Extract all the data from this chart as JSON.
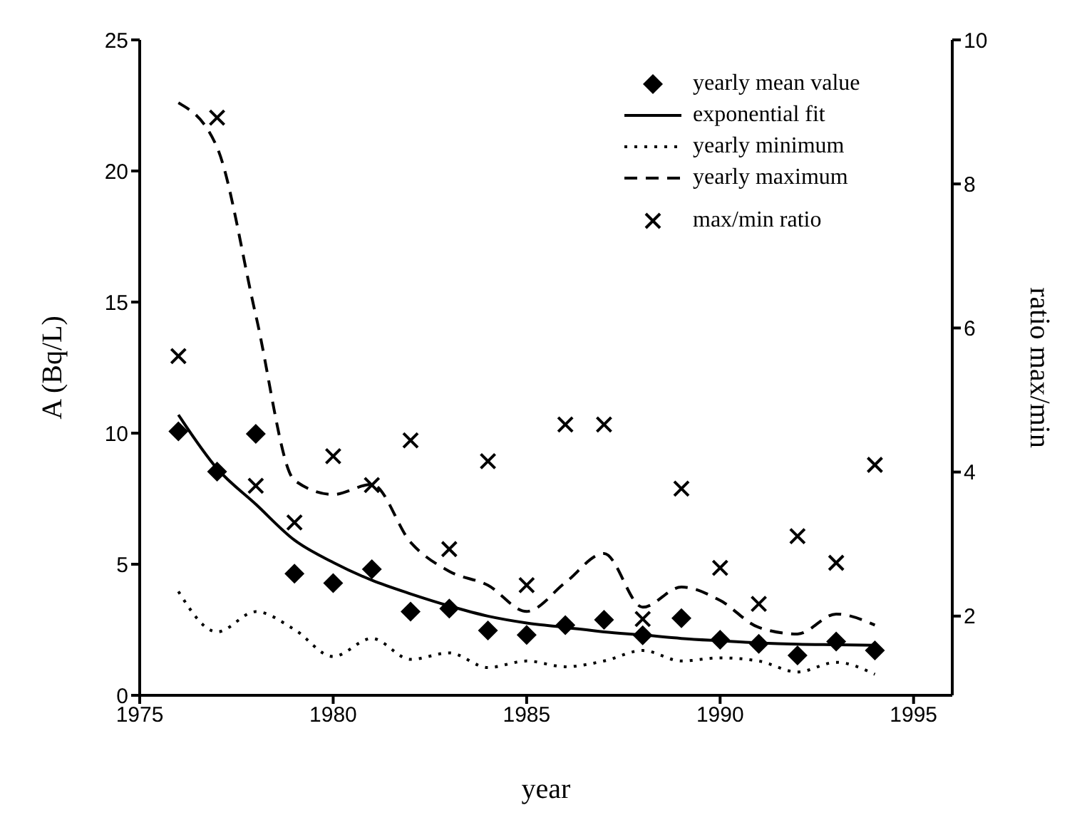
{
  "chart_data": {
    "type": "line",
    "xlabel": "year",
    "ylabel": "A (Bq/L)",
    "y2label": "ratio max/min",
    "x": [
      1976,
      1977,
      1978,
      1979,
      1980,
      1981,
      1982,
      1983,
      1984,
      1985,
      1986,
      1987,
      1988,
      1989,
      1990,
      1991,
      1992,
      1993,
      1994
    ],
    "series": [
      {
        "name": "yearly mean value",
        "type": "scatter",
        "marker": "diamond",
        "color": "#000000",
        "values": [
          10.07,
          8.53,
          9.97,
          4.64,
          4.28,
          4.81,
          3.19,
          3.31,
          2.47,
          2.3,
          2.68,
          2.88,
          2.29,
          2.94,
          2.12,
          1.96,
          1.52,
          2.05,
          1.71
        ]
      },
      {
        "name": "exponential fit",
        "line_style": "solid",
        "color": "#000000",
        "values": [
          10.7,
          8.65,
          7.29,
          5.92,
          5.07,
          4.39,
          3.87,
          3.41,
          3.02,
          2.76,
          2.59,
          2.42,
          2.3,
          2.17,
          2.08,
          2.0,
          1.95,
          1.93,
          1.91
        ]
      },
      {
        "name": "yearly minimum",
        "line_style": "dotted",
        "color": "#000000",
        "values": [
          3.96,
          2.42,
          3.19,
          2.51,
          1.48,
          2.17,
          1.37,
          1.62,
          1.06,
          1.31,
          1.09,
          1.31,
          1.71,
          1.31,
          1.43,
          1.31,
          0.89,
          1.26,
          0.8
        ]
      },
      {
        "name": "yearly maximum",
        "line_style": "dashed",
        "color": "#000000",
        "values": [
          22.6,
          20.9,
          14.5,
          8.2,
          7.66,
          8.05,
          5.84,
          4.73,
          4.2,
          3.2,
          4.3,
          5.41,
          3.36,
          4.13,
          3.62,
          2.59,
          2.34,
          3.1,
          2.68
        ]
      },
      {
        "name": "max/min ratio",
        "type": "scatter",
        "marker": "cross",
        "axis": "y2",
        "color": "#000000",
        "values": [
          5.61,
          8.92,
          3.81,
          3.3,
          4.22,
          3.82,
          4.44,
          2.93,
          4.15,
          2.43,
          4.66,
          4.66,
          1.96,
          3.77,
          2.67,
          2.17,
          3.11,
          2.74,
          4.1
        ]
      }
    ],
    "xlim": [
      1975,
      1996
    ],
    "xticks": [
      1975,
      1980,
      1985,
      1990,
      1995
    ],
    "ylim": [
      0,
      25
    ],
    "yticks": [
      0,
      5,
      10,
      15,
      20,
      25
    ],
    "y2lim": [
      0.9,
      10
    ],
    "y2ticks": [
      2,
      4,
      6,
      8,
      10
    ],
    "grid": false,
    "legend": "top right"
  }
}
